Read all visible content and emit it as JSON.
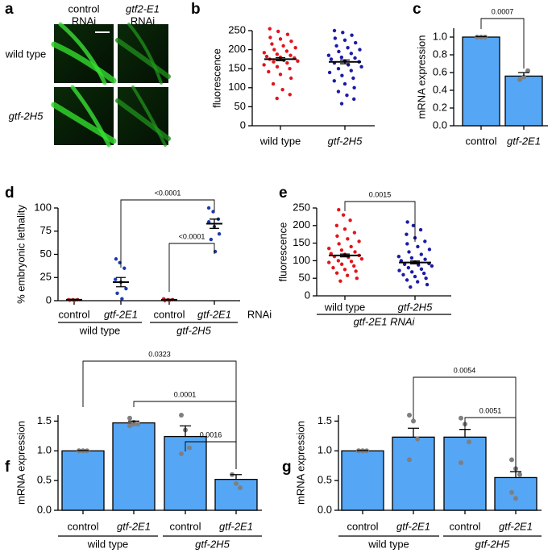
{
  "panel_a": {
    "panel": "a",
    "column_labels": [
      [
        "control",
        "RNAi"
      ],
      [
        "gtf2-E1",
        "RNAi"
      ]
    ],
    "row_labels": [
      "wild type",
      "gtf-2H5"
    ]
  },
  "chart_data": [
    {
      "type": "dotplot",
      "panel": "b",
      "ylabel": "fluorescence",
      "categories": [
        "wild type",
        "gtf-2H5"
      ],
      "colors": [
        "#e3141c",
        "#1b1ba6"
      ],
      "values": [
        175,
        168
      ],
      "errors": [
        4,
        5
      ],
      "points": [
        [
          255,
          248,
          240,
          232,
          228,
          222,
          215,
          210,
          205,
          200,
          196,
          192,
          188,
          185,
          182,
          180,
          178,
          175,
          172,
          170,
          168,
          165,
          160,
          155,
          150,
          142,
          135,
          125,
          110,
          95,
          82,
          72
        ],
        [
          250,
          245,
          238,
          230,
          225,
          218,
          210,
          205,
          200,
          195,
          190,
          185,
          180,
          178,
          175,
          170,
          168,
          165,
          160,
          155,
          150,
          145,
          140,
          132,
          125,
          118,
          110,
          100,
          90,
          80,
          70,
          58
        ]
      ],
      "ylim": [
        0,
        250
      ],
      "yticks": [
        0,
        50,
        100,
        150,
        200,
        250
      ]
    },
    {
      "type": "bar",
      "panel": "c",
      "ylabel": "mRNA expression",
      "categories": [
        "control",
        "gtf-2E1"
      ],
      "color": "#55a6f5",
      "point_color": "#7f7f7f",
      "values": [
        1.0,
        0.56
      ],
      "errors": [
        0.005,
        0.04
      ],
      "points": [
        [
          1,
          1,
          1
        ],
        [
          0.52,
          0.55,
          0.62
        ]
      ],
      "ylim": [
        0,
        1.1
      ],
      "yticks": [
        {
          "value": 0,
          "label": "0.0"
        },
        0.2,
        0.4,
        0.6,
        0.8,
        {
          "value": 1,
          "label": "1.0"
        }
      ],
      "annotations": [
        "0.0007"
      ]
    },
    {
      "type": "dotplot",
      "panel": "d",
      "ylabel": "% embryonic lethality",
      "categories": [
        "control",
        "gtf-2E1",
        "control",
        "gtf-2E1"
      ],
      "groups": [
        "wild type",
        "gtf-2H5"
      ],
      "group_note": "RNAi",
      "colors": [
        "#d62728",
        "#1a3ab0",
        "#d62728",
        "#1a3ab0"
      ],
      "values": [
        1,
        20,
        1,
        83
      ],
      "errors": [
        0.5,
        5,
        0.5,
        5
      ],
      "points": [
        [
          1,
          1,
          1,
          0.5,
          0
        ],
        [
          45,
          41,
          35,
          23,
          20,
          13,
          8,
          2
        ],
        [
          2,
          1,
          1,
          0,
          0
        ],
        [
          100,
          96,
          88,
          85,
          80,
          72,
          66,
          53
        ]
      ],
      "ylim": [
        0,
        100
      ],
      "yticks": [
        0,
        25,
        50,
        75,
        100
      ],
      "annotations": [
        "<0.0001",
        "<0.0001"
      ]
    },
    {
      "type": "dotplot",
      "panel": "e",
      "ylabel": "fluorescence",
      "categories": [
        "wild type",
        "gtf-2H5"
      ],
      "xlabel": "gtf-2E1 RNAi",
      "colors": [
        "#e3141c",
        "#1b1ba6"
      ],
      "values": [
        115,
        95
      ],
      "errors": [
        4,
        4
      ],
      "points": [
        [
          245,
          230,
          215,
          200,
          190,
          180,
          170,
          162,
          155,
          148,
          140,
          135,
          130,
          125,
          120,
          118,
          115,
          112,
          110,
          105,
          100,
          98,
          95,
          90,
          85,
          80,
          75,
          70,
          65,
          58,
          50,
          42
        ],
        [
          210,
          200,
          188,
          175,
          165,
          155,
          148,
          140,
          132,
          125,
          118,
          112,
          108,
          104,
          100,
          96,
          92,
          90,
          88,
          85,
          80,
          76,
          72,
          68,
          64,
          60,
          55,
          50,
          45,
          40,
          32,
          25
        ]
      ],
      "ylim": [
        0,
        250
      ],
      "yticks": [
        0,
        50,
        100,
        150,
        200,
        250
      ],
      "annotations": [
        "0.0015"
      ]
    },
    {
      "type": "bar",
      "panel": "f",
      "ylabel": "mRNA expression",
      "categories": [
        "control",
        "gtf-2E1",
        "control",
        "gtf-2E1"
      ],
      "groups": [
        "wild type",
        "gtf-2H5"
      ],
      "color": "#55a6f5",
      "point_color": "#7f7f7f",
      "values": [
        1.0,
        1.47,
        1.24,
        0.52
      ],
      "errors": [
        0.005,
        0.03,
        0.18,
        0.08
      ],
      "points": [
        [
          1,
          1,
          1,
          1,
          1
        ],
        [
          1.55,
          1.48,
          1.45,
          1.42,
          1.45
        ],
        [
          1.6,
          1.35,
          1.05,
          0.95
        ],
        [
          0.6,
          0.45,
          0.38
        ]
      ],
      "ylim": [
        0,
        1.6
      ],
      "yticks": [
        {
          "value": 0,
          "label": "0.0"
        },
        0.5,
        {
          "value": 1,
          "label": "1.0"
        },
        1.5
      ],
      "annotations": [
        "0.0323",
        "0.0001",
        "0.0016"
      ]
    },
    {
      "type": "bar",
      "panel": "g",
      "ylabel": "mRNA expression",
      "categories": [
        "control",
        "gtf-2E1",
        "control",
        "gtf-2E1"
      ],
      "groups": [
        "wild type",
        "gtf-2H5"
      ],
      "color": "#55a6f5",
      "point_color": "#7f7f7f",
      "values": [
        1.0,
        1.23,
        1.23,
        0.55
      ],
      "errors": [
        0.005,
        0.15,
        0.13,
        0.1
      ],
      "points": [
        [
          1,
          1,
          1,
          1,
          1
        ],
        [
          1.6,
          1.5,
          1.2,
          0.85
        ],
        [
          1.55,
          1.45,
          1.15,
          0.8
        ],
        [
          0.85,
          0.7,
          0.6,
          0.3,
          0.2
        ]
      ],
      "ylim": [
        0,
        1.6
      ],
      "yticks": [
        {
          "value": 0,
          "label": "0.0"
        },
        0.5,
        {
          "value": 1,
          "label": "1.0"
        },
        1.5
      ],
      "annotations": [
        "0.0054",
        "0.0051"
      ]
    }
  ]
}
